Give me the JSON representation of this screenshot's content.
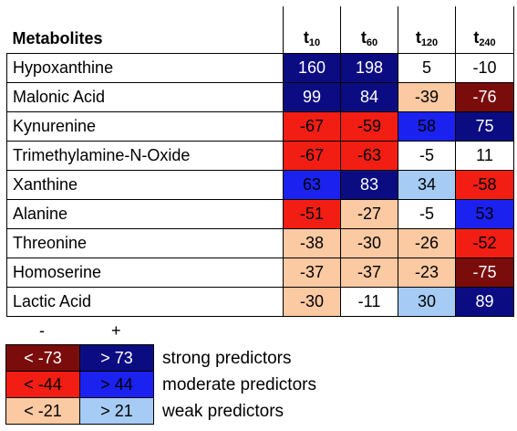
{
  "chart_data": {
    "type": "heatmap",
    "row_header": "Metabolites",
    "columns": [
      {
        "base": "t",
        "sub": "10"
      },
      {
        "base": "t",
        "sub": "60"
      },
      {
        "base": "t",
        "sub": "120"
      },
      {
        "base": "t",
        "sub": "240"
      }
    ],
    "rows": [
      {
        "name": "Hypoxanthine",
        "values": [
          160,
          198,
          5,
          -10
        ]
      },
      {
        "name": "Malonic Acid",
        "values": [
          99,
          84,
          -39,
          -76
        ]
      },
      {
        "name": "Kynurenine",
        "values": [
          -67,
          -59,
          58,
          75
        ]
      },
      {
        "name": "Trimethylamine-N-Oxide",
        "values": [
          -67,
          -63,
          -5,
          11
        ]
      },
      {
        "name": "Xanthine",
        "values": [
          63,
          83,
          34,
          -58
        ]
      },
      {
        "name": "Alanine",
        "values": [
          -51,
          -27,
          -5,
          53
        ]
      },
      {
        "name": "Threonine",
        "values": [
          -38,
          -30,
          -26,
          -52
        ]
      },
      {
        "name": "Homoserine",
        "values": [
          -37,
          -37,
          -23,
          -75
        ]
      },
      {
        "name": "Lactic Acid",
        "values": [
          -30,
          -11,
          30,
          89
        ]
      }
    ],
    "thresholds": {
      "strong": 73,
      "moderate": 44,
      "weak": 21
    },
    "colors": {
      "strong_negative": "#7a0c0c",
      "moderate_negative": "#f21e14",
      "weak_negative": "#fbc9a2",
      "neutral": "#ffffff",
      "weak_positive": "#a6ccf5",
      "moderate_positive": "#1b22f0",
      "strong_positive": "#0c0c82",
      "dark_text": "#ffffff",
      "light_text": "#000000"
    }
  },
  "legend": {
    "negative_sign": "-",
    "positive_sign": "+",
    "items": [
      {
        "negative": "< -73",
        "positive": "> 73",
        "label": "strong predictors",
        "neg_color": "#7a0c0c",
        "pos_color": "#0c0c82",
        "text_color": "#ffffff"
      },
      {
        "negative": "< -44",
        "positive": "> 44",
        "label": "moderate predictors",
        "neg_color": "#f21e14",
        "pos_color": "#1b22f0",
        "text_color": "#000000"
      },
      {
        "negative": "< -21",
        "positive": "> 21",
        "label": "weak predictors",
        "neg_color": "#fbc9a2",
        "pos_color": "#a6ccf5",
        "text_color": "#000000"
      }
    ]
  }
}
